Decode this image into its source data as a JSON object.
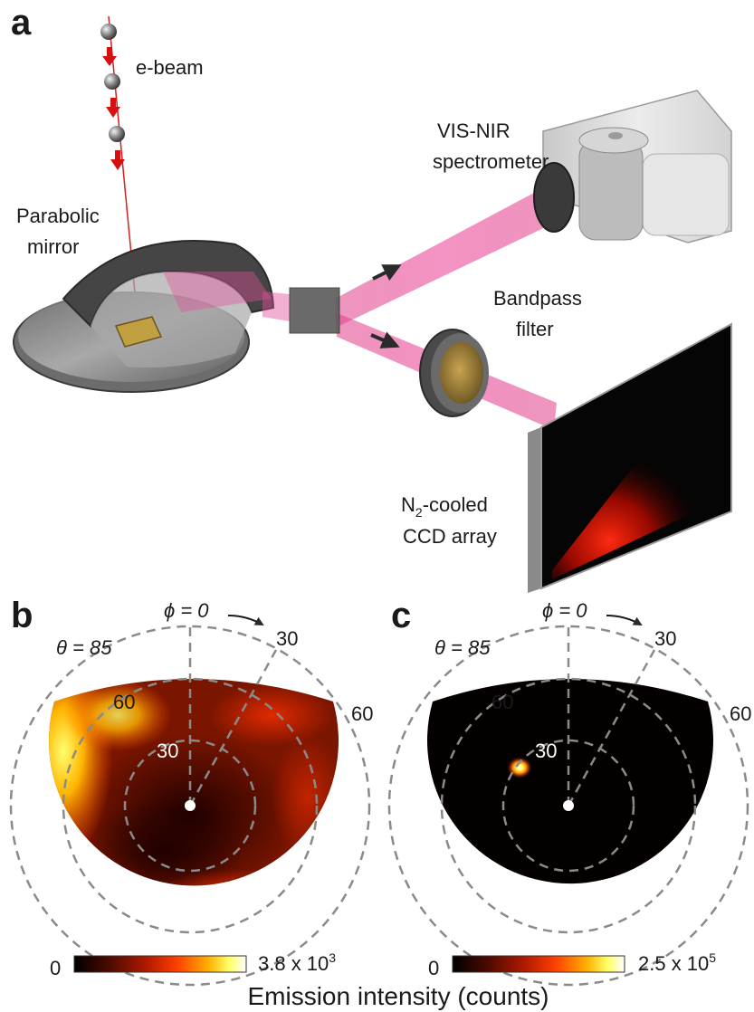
{
  "panel_a": {
    "letter": "a",
    "labels": {
      "ebeam": "e-beam",
      "spectrometer_1": "VIS-NIR",
      "spectrometer_2": "spectrometer",
      "mirror_1": "Parabolic",
      "mirror_2": "mirror",
      "filter_1": "Bandpass",
      "filter_2": "filter",
      "ccd_1_prefix": "N",
      "ccd_1_sub": "2",
      "ccd_1_suffix": "-cooled",
      "ccd_2": "CCD array"
    }
  },
  "panel_b": {
    "letter": "b",
    "phi0": "ϕ = 0",
    "phi30": "30",
    "theta85": "θ = 85",
    "theta60_left": "60",
    "theta60_right": "60",
    "theta30": "30",
    "cb_min": "0",
    "cb_max_base": "3.8 x 10",
    "cb_max_exp": "3",
    "colormap": [
      "#000000",
      "#4a0a00",
      "#b01a00",
      "#ff4000",
      "#ffb000",
      "#ffff66",
      "#ffffff"
    ]
  },
  "panel_c": {
    "letter": "c",
    "phi0": "ϕ = 0",
    "phi30": "30",
    "theta85": "θ = 85",
    "theta60_left": "60",
    "theta60_right": "60",
    "theta30": "30",
    "cb_min": "0",
    "cb_max_base": "2.5 x 10",
    "cb_max_exp": "5",
    "colormap": [
      "#000000",
      "#4a0a00",
      "#b01a00",
      "#ff4000",
      "#ffb000",
      "#ffff66",
      "#ffffff"
    ]
  },
  "shared_xlabel": "Emission intensity (counts)"
}
